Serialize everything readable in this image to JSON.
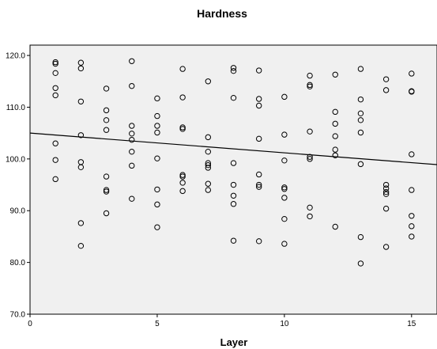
{
  "chart_data": {
    "type": "scatter",
    "title": "Hardness",
    "xlabel": "Layer",
    "ylabel": "",
    "xlim": [
      0,
      16
    ],
    "ylim": [
      70,
      122
    ],
    "xticks": [
      0,
      5,
      10,
      15
    ],
    "xtick_labels": [
      "0",
      "5",
      "10",
      "15"
    ],
    "yticks": [
      70,
      80,
      90,
      100,
      110,
      120
    ],
    "ytick_labels": [
      "70.0",
      "80.0",
      "90.0",
      "100.0",
      "110.0",
      "120.0"
    ],
    "grid": false,
    "legend": "none",
    "plot_background": "#f0f0f0",
    "marker": "open-circle",
    "points": [
      {
        "x": 1,
        "y": 118.7
      },
      {
        "x": 1,
        "y": 118.4
      },
      {
        "x": 1,
        "y": 116.6
      },
      {
        "x": 1,
        "y": 113.7
      },
      {
        "x": 1,
        "y": 112.3
      },
      {
        "x": 1,
        "y": 103
      },
      {
        "x": 1,
        "y": 99.8
      },
      {
        "x": 1,
        "y": 96.1
      },
      {
        "x": 2,
        "y": 118.6
      },
      {
        "x": 2,
        "y": 117.5
      },
      {
        "x": 2,
        "y": 111.1
      },
      {
        "x": 2,
        "y": 104.6
      },
      {
        "x": 2,
        "y": 99.4
      },
      {
        "x": 2,
        "y": 98.4
      },
      {
        "x": 2,
        "y": 87.6
      },
      {
        "x": 2,
        "y": 83.2
      },
      {
        "x": 3,
        "y": 113.6
      },
      {
        "x": 3,
        "y": 109.4
      },
      {
        "x": 3,
        "y": 107.5
      },
      {
        "x": 3,
        "y": 105.6
      },
      {
        "x": 3,
        "y": 96.6
      },
      {
        "x": 3,
        "y": 94
      },
      {
        "x": 3,
        "y": 93.7
      },
      {
        "x": 3,
        "y": 89.5
      },
      {
        "x": 4,
        "y": 118.9
      },
      {
        "x": 4,
        "y": 114.1
      },
      {
        "x": 4,
        "y": 106.4
      },
      {
        "x": 4,
        "y": 104.9
      },
      {
        "x": 4,
        "y": 103.7
      },
      {
        "x": 4,
        "y": 101.4
      },
      {
        "x": 4,
        "y": 98.7
      },
      {
        "x": 4,
        "y": 92.3
      },
      {
        "x": 5,
        "y": 111.7
      },
      {
        "x": 5,
        "y": 108.3
      },
      {
        "x": 5,
        "y": 106.4
      },
      {
        "x": 5,
        "y": 105.1
      },
      {
        "x": 5,
        "y": 100.1
      },
      {
        "x": 5,
        "y": 94.1
      },
      {
        "x": 5,
        "y": 91.2
      },
      {
        "x": 5,
        "y": 86.8
      },
      {
        "x": 6,
        "y": 117.4
      },
      {
        "x": 6,
        "y": 111.9
      },
      {
        "x": 6,
        "y": 106.1
      },
      {
        "x": 6,
        "y": 105.8
      },
      {
        "x": 6,
        "y": 96.9
      },
      {
        "x": 6,
        "y": 96.6
      },
      {
        "x": 6,
        "y": 95.4
      },
      {
        "x": 6,
        "y": 93.8
      },
      {
        "x": 7,
        "y": 115
      },
      {
        "x": 7,
        "y": 104.2
      },
      {
        "x": 7,
        "y": 101.4
      },
      {
        "x": 7,
        "y": 99.2
      },
      {
        "x": 7,
        "y": 98.8
      },
      {
        "x": 7,
        "y": 98.3
      },
      {
        "x": 7,
        "y": 95.2
      },
      {
        "x": 7,
        "y": 94
      },
      {
        "x": 8,
        "y": 117.6
      },
      {
        "x": 8,
        "y": 117
      },
      {
        "x": 8,
        "y": 111.8
      },
      {
        "x": 8,
        "y": 99.2
      },
      {
        "x": 8,
        "y": 95
      },
      {
        "x": 8,
        "y": 92.9
      },
      {
        "x": 8,
        "y": 91.3
      },
      {
        "x": 8,
        "y": 84.2
      },
      {
        "x": 9,
        "y": 117.1
      },
      {
        "x": 9,
        "y": 111.6
      },
      {
        "x": 9,
        "y": 110.3
      },
      {
        "x": 9,
        "y": 103.9
      },
      {
        "x": 9,
        "y": 97
      },
      {
        "x": 9,
        "y": 95
      },
      {
        "x": 9,
        "y": 94.6
      },
      {
        "x": 9,
        "y": 84.1
      },
      {
        "x": 10,
        "y": 112
      },
      {
        "x": 10,
        "y": 104.7
      },
      {
        "x": 10,
        "y": 99.7
      },
      {
        "x": 10,
        "y": 94.5
      },
      {
        "x": 10,
        "y": 94.2
      },
      {
        "x": 10,
        "y": 92.5
      },
      {
        "x": 10,
        "y": 88.4
      },
      {
        "x": 10,
        "y": 83.6
      },
      {
        "x": 11,
        "y": 116.1
      },
      {
        "x": 11,
        "y": 114.3
      },
      {
        "x": 11,
        "y": 114
      },
      {
        "x": 11,
        "y": 105.3
      },
      {
        "x": 11,
        "y": 100.4
      },
      {
        "x": 11,
        "y": 100
      },
      {
        "x": 11,
        "y": 90.6
      },
      {
        "x": 11,
        "y": 88.9
      },
      {
        "x": 12,
        "y": 116.3
      },
      {
        "x": 12,
        "y": 109.1
      },
      {
        "x": 12,
        "y": 106.8
      },
      {
        "x": 12,
        "y": 104.4
      },
      {
        "x": 12,
        "y": 101.8
      },
      {
        "x": 12,
        "y": 100.7
      },
      {
        "x": 12,
        "y": 86.9
      },
      {
        "x": 13,
        "y": 117.4
      },
      {
        "x": 13,
        "y": 111.5
      },
      {
        "x": 13,
        "y": 108.8
      },
      {
        "x": 13,
        "y": 107.5
      },
      {
        "x": 13,
        "y": 105.1
      },
      {
        "x": 13,
        "y": 99
      },
      {
        "x": 13,
        "y": 84.9
      },
      {
        "x": 13,
        "y": 79.8
      },
      {
        "x": 14,
        "y": 115.4
      },
      {
        "x": 14,
        "y": 113.3
      },
      {
        "x": 14,
        "y": 95
      },
      {
        "x": 14,
        "y": 94.3
      },
      {
        "x": 14,
        "y": 93.6
      },
      {
        "x": 14,
        "y": 93.2
      },
      {
        "x": 14,
        "y": 90.4
      },
      {
        "x": 14,
        "y": 83
      },
      {
        "x": 15,
        "y": 116.5
      },
      {
        "x": 15,
        "y": 113.1
      },
      {
        "x": 15,
        "y": 113
      },
      {
        "x": 15,
        "y": 100.9
      },
      {
        "x": 15,
        "y": 94
      },
      {
        "x": 15,
        "y": 89
      },
      {
        "x": 15,
        "y": 87
      },
      {
        "x": 15,
        "y": 85
      }
    ],
    "fit_line": {
      "x": [
        0,
        16
      ],
      "y": [
        105,
        98.9
      ]
    }
  }
}
